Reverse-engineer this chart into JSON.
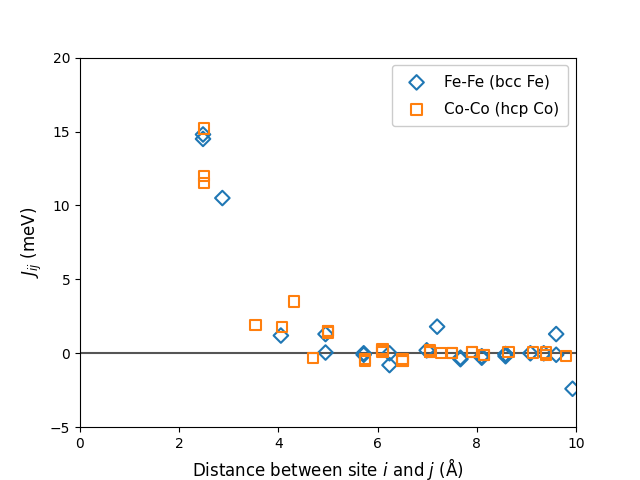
{
  "title": "",
  "xlabel": "Distance between site $i$ and $j$ (Å)",
  "ylabel": "$J_{ij}$ (meV)",
  "xlim": [
    0,
    10
  ],
  "ylim": [
    -5,
    20
  ],
  "xticks": [
    0,
    2,
    4,
    6,
    8,
    10
  ],
  "yticks": [
    -5,
    0,
    5,
    10,
    15,
    20
  ],
  "fe_x": [
    2.48,
    2.48,
    2.87,
    4.05,
    4.95,
    4.95,
    5.72,
    5.72,
    6.24,
    6.24,
    6.99,
    7.2,
    7.67,
    7.67,
    8.1,
    8.1,
    8.58,
    8.58,
    8.58,
    9.08,
    9.35,
    9.6,
    9.6,
    9.93
  ],
  "fe_y": [
    14.8,
    14.5,
    10.5,
    1.2,
    1.3,
    0.05,
    0.0,
    -0.1,
    -0.8,
    0.0,
    0.2,
    1.8,
    -0.3,
    -0.4,
    -0.2,
    -0.3,
    -0.1,
    -0.2,
    -0.05,
    0.0,
    0.0,
    1.3,
    -0.1,
    -2.4
  ],
  "co_x": [
    2.5,
    2.5,
    2.5,
    3.54,
    4.07,
    4.32,
    4.7,
    5.0,
    5.0,
    5.0,
    5.74,
    5.74,
    6.1,
    6.1,
    6.1,
    6.5,
    6.5,
    6.5,
    7.05,
    7.05,
    7.05,
    7.28,
    7.5,
    7.5,
    7.9,
    7.9,
    8.14,
    8.14,
    8.64,
    9.14,
    9.4,
    9.4,
    9.8
  ],
  "co_y": [
    15.2,
    12.0,
    11.5,
    1.9,
    1.8,
    3.5,
    -0.3,
    1.5,
    1.5,
    1.4,
    -0.4,
    -0.5,
    0.3,
    0.2,
    0.1,
    -0.5,
    -0.5,
    -0.4,
    0.2,
    0.1,
    0.1,
    0.0,
    0.0,
    0.0,
    0.1,
    0.1,
    -0.1,
    -0.1,
    0.1,
    0.05,
    0.05,
    -0.1,
    -0.2
  ],
  "fe_color": "#1f77b4",
  "co_color": "#ff7f0e",
  "fe_label": "Fe-Fe (bcc Fe)",
  "co_label": "Co-Co (hcp Co)",
  "hline_color": "#555555",
  "hline_lw": 1.5,
  "marker_size": 55,
  "marker_lw": 1.5,
  "legend_loc": "upper right",
  "legend_fontsize": 11,
  "axis_fontsize": 12,
  "figsize": [
    6.4,
    4.8
  ],
  "dpi": 100
}
